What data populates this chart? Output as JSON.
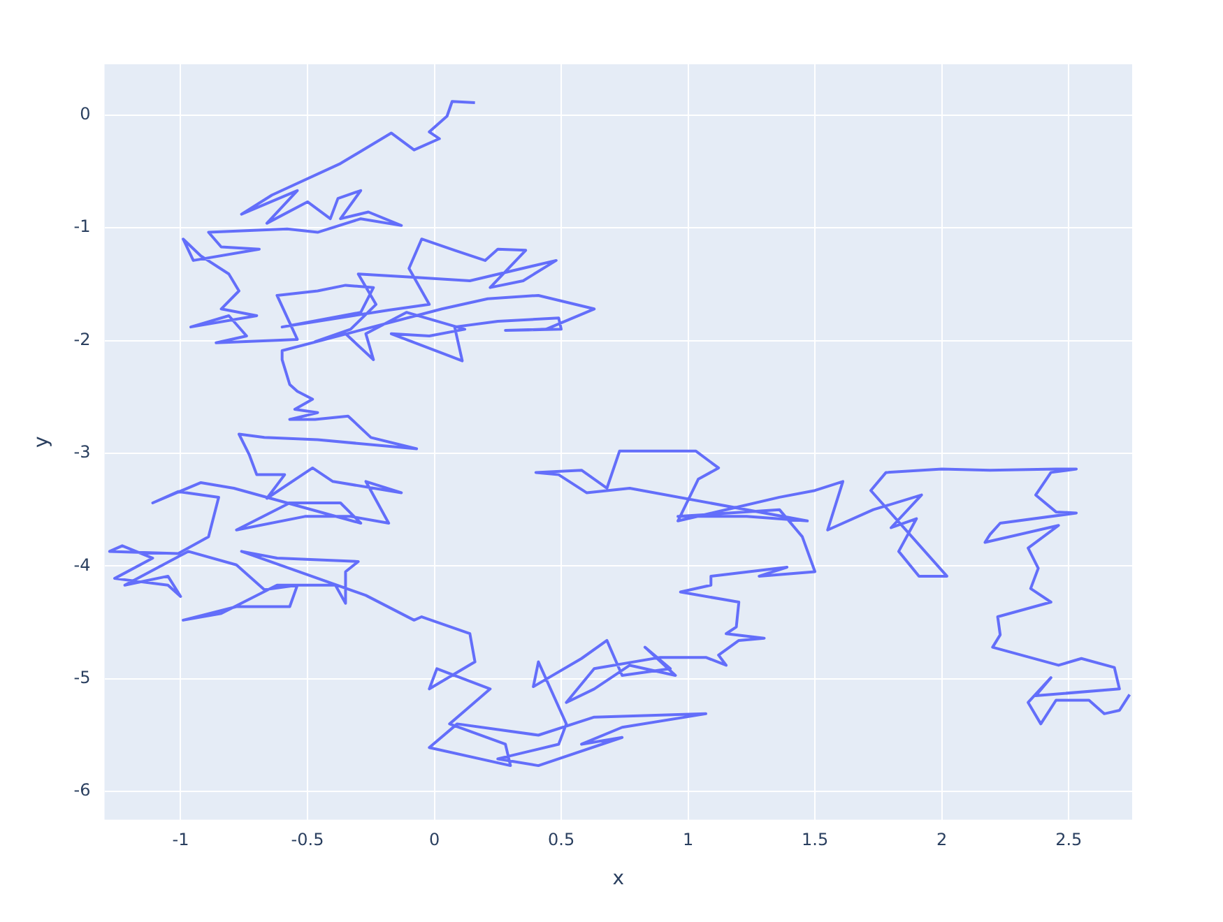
{
  "chart_data": {
    "type": "line",
    "xlabel": "x",
    "ylabel": "y",
    "xlim": [
      -1.3,
      2.75
    ],
    "ylim": [
      -6.25,
      0.45
    ],
    "xticks": [
      -1,
      -0.5,
      0,
      0.5,
      1,
      1.5,
      2,
      2.5
    ],
    "yticks": [
      -6,
      -5,
      -4,
      -3,
      -2,
      -1,
      0
    ],
    "grid": true,
    "marker": "none",
    "line_style": "solid",
    "series": [
      {
        "color": "#636efa",
        "x": [
          0.16,
          0.07,
          0.05,
          -0.02,
          0.02,
          -0.08,
          -0.17,
          -0.37,
          -0.64,
          -0.76,
          -0.54,
          -0.66,
          -0.5,
          -0.41,
          -0.38,
          -0.29,
          -0.37,
          -0.26,
          -0.13,
          -0.29,
          -0.46,
          -0.58,
          -0.89,
          -0.84,
          -0.69,
          -0.95,
          -0.99,
          -0.92,
          -0.81,
          -0.77,
          -0.84,
          -0.7,
          -0.96,
          -0.81,
          -0.74,
          -0.86,
          -0.54,
          -0.62,
          -0.46,
          -0.35,
          -0.24,
          -0.29,
          -0.6,
          -0.18,
          -0.02,
          -0.1,
          -0.05,
          0.08,
          0.2,
          0.25,
          0.36,
          0.22,
          0.35,
          0.48,
          0.14,
          -0.08,
          -0.3,
          -0.23,
          -0.33,
          -0.47,
          -0.35,
          -0.24,
          -0.27,
          -0.11,
          0.12,
          -0.02,
          -0.17,
          0.11,
          0.08,
          0.25,
          0.49,
          0.5,
          0.28,
          0.44,
          0.63,
          0.41,
          0.21,
          0.03,
          -0.6,
          -0.6,
          -0.57,
          -0.54,
          -0.48,
          -0.55,
          -0.46,
          -0.57,
          -0.47,
          -0.34,
          -0.25,
          -0.07,
          -0.46,
          -0.67,
          -0.77,
          -0.73,
          -0.7,
          -0.59,
          -0.66,
          -0.48,
          -0.4,
          -0.13,
          -0.27,
          -0.18,
          -0.33,
          -0.51,
          -0.78,
          -0.57,
          -0.37,
          -0.29,
          -0.79,
          -0.92,
          -1.11,
          -1.01,
          -0.85,
          -0.89,
          -1.01,
          -1.28,
          -1.23,
          -1.11,
          -1.26,
          -1.05,
          -1.0,
          -1.05,
          -1.22,
          -0.97,
          -0.78,
          -0.67,
          -0.54,
          -0.57,
          -0.78,
          -0.99,
          -0.84,
          -0.62,
          -0.39,
          -0.35,
          -0.35,
          -0.3,
          -0.62,
          -0.76,
          -0.27,
          -0.08,
          -0.05,
          0.14,
          0.16,
          -0.02,
          0.01,
          0.22,
          0.06,
          0.28,
          0.3,
          -0.02,
          0.09,
          0.41,
          0.63,
          1.07,
          0.74,
          0.58,
          0.74,
          0.41,
          0.25,
          0.49,
          0.52,
          0.41,
          0.39,
          0.58,
          0.68,
          0.74,
          0.93,
          0.83,
          0.95,
          0.77,
          0.63,
          0.52,
          0.63,
          0.89,
          1.07,
          1.15,
          1.12,
          1.2,
          1.3,
          1.15,
          1.19,
          1.2,
          0.97,
          1.09,
          1.09,
          1.39,
          1.28,
          1.5,
          1.45,
          1.36,
          0.96,
          1.23,
          1.47,
          0.77,
          0.6,
          0.49,
          0.4,
          0.58,
          0.68,
          0.73,
          1.03,
          1.12,
          1.04,
          0.96,
          1.36,
          1.5,
          1.61,
          1.55,
          1.73,
          1.92,
          1.8,
          1.9,
          1.83,
          1.91,
          2.02,
          1.72,
          1.78,
          2.0,
          2.19,
          2.45,
          2.53,
          2.43,
          2.37,
          2.45,
          2.53,
          2.23,
          2.19,
          2.17,
          2.46,
          2.34,
          2.38,
          2.35,
          2.43,
          2.22,
          2.23,
          2.2,
          2.46,
          2.55,
          2.68,
          2.7,
          2.37,
          2.43,
          2.34,
          2.39,
          2.45,
          2.58,
          2.64,
          2.7,
          2.74
        ],
        "values": [
          0.11,
          0.12,
          -0.01,
          -0.15,
          -0.21,
          -0.31,
          -0.16,
          -0.43,
          -0.71,
          -0.88,
          -0.67,
          -0.96,
          -0.77,
          -0.92,
          -0.74,
          -0.67,
          -0.92,
          -0.86,
          -0.98,
          -0.92,
          -1.04,
          -1.01,
          -1.04,
          -1.17,
          -1.19,
          -1.29,
          -1.1,
          -1.25,
          -1.41,
          -1.56,
          -1.72,
          -1.78,
          -1.88,
          -1.78,
          -1.96,
          -2.02,
          -1.99,
          -1.6,
          -1.56,
          -1.51,
          -1.53,
          -1.75,
          -1.88,
          -1.73,
          -1.68,
          -1.36,
          -1.1,
          -1.2,
          -1.29,
          -1.19,
          -1.2,
          -1.53,
          -1.47,
          -1.29,
          -1.47,
          -1.44,
          -1.41,
          -1.68,
          -1.9,
          -2.01,
          -1.94,
          -2.17,
          -1.94,
          -1.75,
          -1.9,
          -1.96,
          -1.94,
          -2.18,
          -1.88,
          -1.83,
          -1.8,
          -1.9,
          -1.91,
          -1.9,
          -1.72,
          -1.6,
          -1.63,
          -1.72,
          -2.09,
          -2.17,
          -2.39,
          -2.45,
          -2.52,
          -2.61,
          -2.64,
          -2.7,
          -2.7,
          -2.67,
          -2.86,
          -2.96,
          -2.88,
          -2.86,
          -2.83,
          -3.01,
          -3.19,
          -3.19,
          -3.4,
          -3.13,
          -3.25,
          -3.35,
          -3.25,
          -3.62,
          -3.56,
          -3.56,
          -3.68,
          -3.44,
          -3.44,
          -3.62,
          -3.31,
          -3.26,
          -3.44,
          -3.34,
          -3.39,
          -3.74,
          -3.89,
          -3.87,
          -3.82,
          -3.93,
          -4.11,
          -4.17,
          -4.27,
          -4.09,
          -4.17,
          -3.87,
          -3.99,
          -4.21,
          -4.17,
          -4.36,
          -4.36,
          -4.48,
          -4.42,
          -4.17,
          -4.17,
          -4.33,
          -4.05,
          -3.96,
          -3.93,
          -3.87,
          -4.26,
          -4.48,
          -4.45,
          -4.6,
          -4.85,
          -5.09,
          -4.91,
          -5.09,
          -5.4,
          -5.58,
          -5.77,
          -5.61,
          -5.4,
          -5.5,
          -5.34,
          -5.31,
          -5.43,
          -5.58,
          -5.52,
          -5.77,
          -5.71,
          -5.58,
          -5.4,
          -4.85,
          -5.07,
          -4.82,
          -4.66,
          -4.97,
          -4.91,
          -4.72,
          -4.97,
          -4.88,
          -5.09,
          -5.21,
          -4.91,
          -4.81,
          -4.81,
          -4.88,
          -4.79,
          -4.66,
          -4.64,
          -4.6,
          -4.54,
          -4.32,
          -4.23,
          -4.17,
          -4.09,
          -4.01,
          -4.09,
          -4.05,
          -3.74,
          -3.5,
          -3.56,
          -3.56,
          -3.6,
          -3.31,
          -3.35,
          -3.19,
          -3.17,
          -3.15,
          -3.31,
          -2.98,
          -2.98,
          -3.13,
          -3.23,
          -3.6,
          -3.39,
          -3.33,
          -3.25,
          -3.68,
          -3.5,
          -3.37,
          -3.66,
          -3.58,
          -3.87,
          -4.09,
          -4.09,
          -3.33,
          -3.17,
          -3.14,
          -3.15,
          -3.14,
          -3.14,
          -3.17,
          -3.37,
          -3.52,
          -3.53,
          -3.62,
          -3.72,
          -3.79,
          -3.64,
          -3.84,
          -4.02,
          -4.2,
          -4.32,
          -4.45,
          -4.61,
          -4.72,
          -4.88,
          -4.82,
          -4.9,
          -5.09,
          -5.15,
          -4.99,
          -5.21,
          -5.4,
          -5.19,
          -5.19,
          -5.31,
          -5.28,
          -5.14
        ]
      }
    ]
  }
}
